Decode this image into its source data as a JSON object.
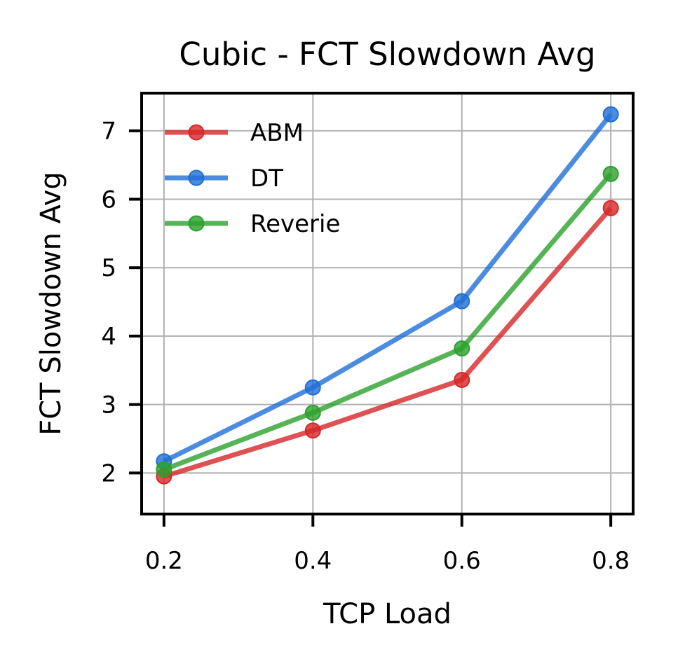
{
  "chart_data": {
    "type": "line",
    "title": "Cubic - FCT Slowdown Avg",
    "xlabel": "TCP Load",
    "ylabel": "FCT Slowdown Avg",
    "x": [
      0.2,
      0.4,
      0.6,
      0.8
    ],
    "xticks": [
      "0.2",
      "0.4",
      "0.6",
      "0.8"
    ],
    "yticks": [
      "2",
      "3",
      "4",
      "5",
      "6",
      "7"
    ],
    "xlim": [
      0.17,
      0.83
    ],
    "ylim": [
      1.4,
      7.55
    ],
    "grid": true,
    "legend_position": "top-left",
    "series": [
      {
        "name": "ABM",
        "color": "#d62728",
        "values": [
          1.95,
          2.62,
          3.36,
          5.87
        ]
      },
      {
        "name": "DT",
        "color": "#1f6fd6",
        "values": [
          2.17,
          3.25,
          4.51,
          7.24
        ]
      },
      {
        "name": "Reverie",
        "color": "#2ca02c",
        "values": [
          2.05,
          2.88,
          3.82,
          6.37
        ]
      }
    ]
  }
}
